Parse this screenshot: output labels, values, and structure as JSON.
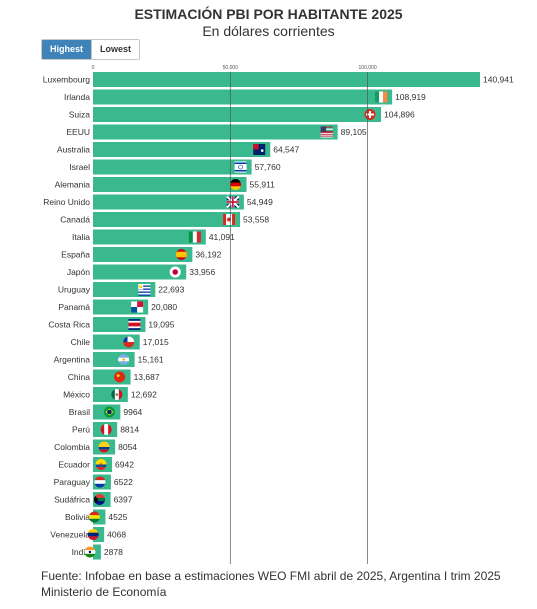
{
  "title": "ESTIMACIÓN PBI POR HABITANTE 2025",
  "subtitle": "En dólares corrientes",
  "toggle": {
    "highest_label": "Highest",
    "lowest_label": "Lowest",
    "active": "highest"
  },
  "source_text": "Fuente: Infobae en base a estimaciones WEO FMI abril de 2025, Argentina I trim 2025 Ministerio de Economía",
  "colors": {
    "bar": "#3bb98e",
    "gridline": "#555555",
    "text": "#333333"
  },
  "chart_data": {
    "type": "bar",
    "orientation": "horizontal",
    "title": "ESTIMACIÓN PBI POR HABITANTE 2025",
    "subtitle": "En dólares corrientes",
    "xlim": [
      0,
      140941
    ],
    "x_ticks": [
      {
        "value": 0,
        "label": "0"
      },
      {
        "value": 50000,
        "label": "50,000"
      },
      {
        "value": 100000,
        "label": "100,000"
      }
    ],
    "grid": true,
    "categories": [
      "Luxembourg",
      "Irlanda",
      "Suiza",
      "EEUU",
      "Australia",
      "Israel",
      "Alemania",
      "Reino Unido",
      "Canadá",
      "Italia",
      "España",
      "Japón",
      "Uruguay",
      "Panamá",
      "Costa Rica",
      "Chile",
      "Argentina",
      "China",
      "México",
      "Brasil",
      "Perú",
      "Colombia",
      "Ecuador",
      "Paraguay",
      "Sudáfrica",
      "Bolivia",
      "Venezuela",
      "India"
    ],
    "values": [
      140941,
      108919,
      104896,
      89105,
      64547,
      57760,
      55911,
      54949,
      53558,
      41091,
      36192,
      33956,
      22693,
      20080,
      19095,
      17015,
      15161,
      13687,
      12692,
      9964,
      8814,
      8054,
      6942,
      6522,
      6397,
      4525,
      4068,
      2878
    ],
    "value_labels": [
      "140,941",
      "108,919",
      "104,896",
      "89,105",
      "64,547",
      "57,760",
      "55,911",
      "54,949",
      "53,558",
      "41,091",
      "36,192",
      "33,956",
      "22,693",
      "20,080",
      "19,095",
      "17,015",
      "15,161",
      "13,687",
      "12,692",
      "9964",
      "8814",
      "8054",
      "6942",
      "6522",
      "6397",
      "4525",
      "4068",
      "2878"
    ],
    "flag_icons": [
      "",
      "ireland-flag-icon",
      "switzerland-flag-icon",
      "usa-flag-icon",
      "australia-flag-icon",
      "israel-flag-icon",
      "germany-flag-icon",
      "uk-flag-icon",
      "canada-flag-icon",
      "italy-flag-icon",
      "spain-flag-icon",
      "japan-flag-icon",
      "uruguay-flag-icon",
      "panama-flag-icon",
      "costa-rica-flag-icon",
      "chile-flag-icon",
      "argentina-flag-icon",
      "china-flag-icon",
      "mexico-flag-icon",
      "brazil-flag-icon",
      "peru-flag-icon",
      "colombia-flag-icon",
      "ecuador-flag-icon",
      "paraguay-flag-icon",
      "south-africa-flag-icon",
      "bolivia-flag-icon",
      "venezuela-flag-icon",
      "india-flag-icon"
    ]
  }
}
